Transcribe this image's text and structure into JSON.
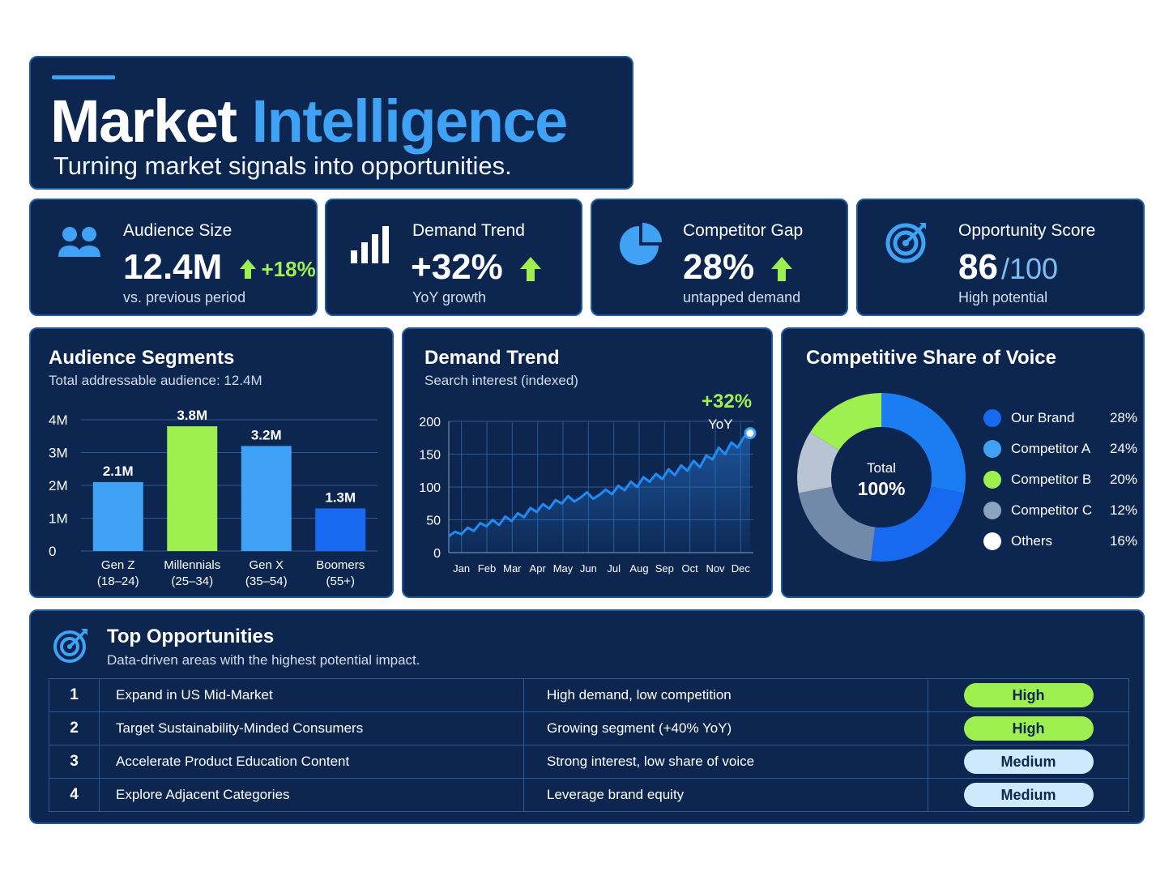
{
  "header": {
    "title_part1": "Market",
    "title_part2": "Intelligence",
    "subtitle": "Turning market signals into opportunities."
  },
  "kpis": [
    {
      "icon": "people-icon",
      "label": "Audience Size",
      "value": "12.4M",
      "delta": "+18%",
      "sub": "vs. previous period"
    },
    {
      "icon": "signal-bars-icon",
      "label": "Demand Trend",
      "value": "+32%",
      "sub": "YoY growth"
    },
    {
      "icon": "pie-chart-icon",
      "label": "Competitor Gap",
      "value": "28%",
      "sub": "untapped demand"
    },
    {
      "icon": "target-icon",
      "label": "Opportunity Score",
      "value": "86",
      "value_suffix": "/100",
      "sub": "High potential"
    }
  ],
  "segments_panel": {
    "title": "Audience Segments",
    "subtitle": "Total addressable audience: 12.4M"
  },
  "trend_panel": {
    "title": "Demand Trend",
    "subtitle": "Search interest (indexed)",
    "callout_value": "+32%",
    "callout_label": "YoY"
  },
  "share_panel": {
    "title": "Competitive Share of Voice",
    "center_label": "Total",
    "center_value": "100%"
  },
  "opportunities": {
    "title": "Top Opportunities",
    "subtitle": "Data-driven areas with the highest potential impact.",
    "rows": [
      {
        "rank": "1",
        "name": "Expand in US Mid-Market",
        "reason": "High demand, low competition",
        "priority": "High"
      },
      {
        "rank": "2",
        "name": "Target Sustainability-Minded Consumers",
        "reason": "Growing segment (+40% YoY)",
        "priority": "High"
      },
      {
        "rank": "3",
        "name": "Accelerate Product Education Content",
        "reason": "Strong interest, low share of voice",
        "priority": "Medium"
      },
      {
        "rank": "4",
        "name": "Explore Adjacent Categories",
        "reason": "Leverage brand equity",
        "priority": "Medium"
      }
    ]
  },
  "colors": {
    "panel_bg": "#0c2650",
    "panel_border": "#1d5a9e",
    "accent_blue": "#3fa2f5",
    "accent_green": "#9df050",
    "deep_blue": "#1769f0"
  },
  "chart_data": [
    {
      "type": "bar",
      "categories": [
        "Gen Z\n(18–24)",
        "Millennials\n(25–34)",
        "Gen X\n(35–54)",
        "Boomers\n(55+)"
      ],
      "values": [
        2.1,
        3.8,
        3.2,
        1.3
      ],
      "value_labels": [
        "2.1M",
        "3.8M",
        "3.2M",
        "1.3M"
      ],
      "colors": [
        "#3fa2f5",
        "#9df050",
        "#3fa2f5",
        "#1769f0"
      ],
      "ylim": [
        0,
        4
      ],
      "yticks": [
        0,
        1,
        2,
        3,
        4
      ],
      "ytick_labels": [
        "0",
        "1M",
        "2M",
        "3M",
        "4M"
      ],
      "grid": true
    },
    {
      "type": "line",
      "x_labels": [
        "Jan",
        "Feb",
        "Mar",
        "Apr",
        "May",
        "Jun",
        "Jul",
        "Aug",
        "Sep",
        "Oct",
        "Nov",
        "Dec"
      ],
      "values": [
        25,
        32,
        28,
        38,
        33,
        45,
        40,
        50,
        42,
        55,
        48,
        60,
        54,
        68,
        62,
        74,
        67,
        80,
        75,
        86,
        78,
        84,
        92,
        82,
        88,
        96,
        89,
        102,
        95,
        108,
        100,
        115,
        108,
        120,
        112,
        127,
        118,
        133,
        125,
        140,
        130,
        148,
        142,
        160,
        150,
        168,
        160,
        176,
        182
      ],
      "ylim": [
        0,
        200
      ],
      "yticks": [
        0,
        50,
        100,
        150,
        200
      ],
      "grid": true
    },
    {
      "type": "pie",
      "labels": [
        "Our Brand",
        "Competitor A",
        "Competitor B",
        "Competitor C",
        "Others"
      ],
      "values": [
        28,
        24,
        20,
        12,
        16
      ],
      "value_labels": [
        "28%",
        "24%",
        "20%",
        "12%",
        "16%"
      ],
      "legend_colors": [
        "#1769f0",
        "#3fa2f5",
        "#9df050",
        "#8ea3bf",
        "#ffffff"
      ],
      "slice_colors": [
        "#1a7ef2",
        "#1769f0",
        "#7389a9",
        "#b8c3d3",
        "#9df050"
      ],
      "donut": true,
      "legend": "right"
    }
  ]
}
